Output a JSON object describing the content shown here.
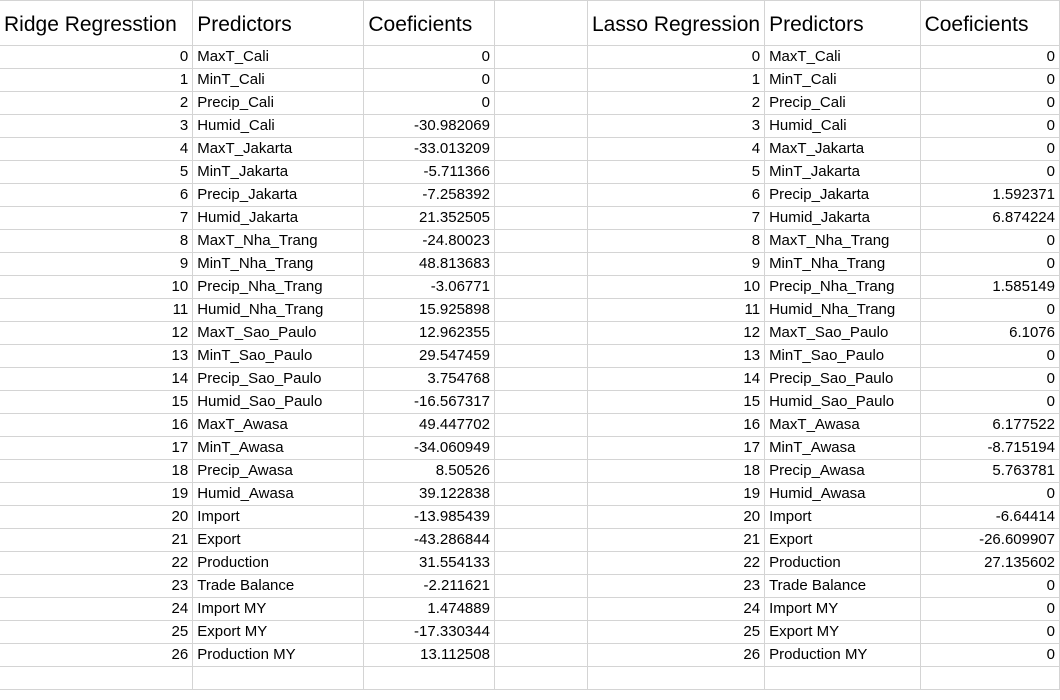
{
  "ridge": {
    "title": "Ridge Regresstion",
    "predictors_header": "Predictors",
    "coef_header": "Coeficients",
    "rows": [
      {
        "idx": "0",
        "name": "MaxT_Cali",
        "coef": "0"
      },
      {
        "idx": "1",
        "name": "MinT_Cali",
        "coef": "0"
      },
      {
        "idx": "2",
        "name": "Precip_Cali",
        "coef": "0"
      },
      {
        "idx": "3",
        "name": "Humid_Cali",
        "coef": "-30.982069"
      },
      {
        "idx": "4",
        "name": "MaxT_Jakarta",
        "coef": "-33.013209"
      },
      {
        "idx": "5",
        "name": "MinT_Jakarta",
        "coef": "-5.711366"
      },
      {
        "idx": "6",
        "name": "Precip_Jakarta",
        "coef": "-7.258392"
      },
      {
        "idx": "7",
        "name": "Humid_Jakarta",
        "coef": "21.352505"
      },
      {
        "idx": "8",
        "name": "MaxT_Nha_Trang",
        "coef": "-24.80023"
      },
      {
        "idx": "9",
        "name": "MinT_Nha_Trang",
        "coef": "48.813683"
      },
      {
        "idx": "10",
        "name": "Precip_Nha_Trang",
        "coef": "-3.06771"
      },
      {
        "idx": "11",
        "name": "Humid_Nha_Trang",
        "coef": "15.925898"
      },
      {
        "idx": "12",
        "name": "MaxT_Sao_Paulo",
        "coef": "12.962355"
      },
      {
        "idx": "13",
        "name": "MinT_Sao_Paulo",
        "coef": "29.547459"
      },
      {
        "idx": "14",
        "name": "Precip_Sao_Paulo",
        "coef": "3.754768"
      },
      {
        "idx": "15",
        "name": "Humid_Sao_Paulo",
        "coef": "-16.567317"
      },
      {
        "idx": "16",
        "name": "MaxT_Awasa",
        "coef": "49.447702"
      },
      {
        "idx": "17",
        "name": "MinT_Awasa",
        "coef": "-34.060949"
      },
      {
        "idx": "18",
        "name": "Precip_Awasa",
        "coef": "8.50526"
      },
      {
        "idx": "19",
        "name": "Humid_Awasa",
        "coef": "39.122838"
      },
      {
        "idx": "20",
        "name": "Import",
        "coef": "-13.985439"
      },
      {
        "idx": "21",
        "name": "Export",
        "coef": "-43.286844"
      },
      {
        "idx": "22",
        "name": "Production",
        "coef": "31.554133"
      },
      {
        "idx": "23",
        "name": "Trade Balance",
        "coef": "-2.211621"
      },
      {
        "idx": "24",
        "name": "Import MY",
        "coef": "1.474889"
      },
      {
        "idx": "25",
        "name": "Export MY",
        "coef": "-17.330344"
      },
      {
        "idx": "26",
        "name": "Production MY",
        "coef": "13.112508"
      }
    ]
  },
  "lasso": {
    "title": "Lasso Regression",
    "predictors_header": "Predictors",
    "coef_header": "Coeficients",
    "rows": [
      {
        "idx": "0",
        "name": "MaxT_Cali",
        "coef": "0"
      },
      {
        "idx": "1",
        "name": "MinT_Cali",
        "coef": "0"
      },
      {
        "idx": "2",
        "name": "Precip_Cali",
        "coef": "0"
      },
      {
        "idx": "3",
        "name": "Humid_Cali",
        "coef": "0"
      },
      {
        "idx": "4",
        "name": "MaxT_Jakarta",
        "coef": "0"
      },
      {
        "idx": "5",
        "name": "MinT_Jakarta",
        "coef": "0"
      },
      {
        "idx": "6",
        "name": "Precip_Jakarta",
        "coef": "1.592371"
      },
      {
        "idx": "7",
        "name": "Humid_Jakarta",
        "coef": "6.874224"
      },
      {
        "idx": "8",
        "name": "MaxT_Nha_Trang",
        "coef": "0"
      },
      {
        "idx": "9",
        "name": "MinT_Nha_Trang",
        "coef": "0"
      },
      {
        "idx": "10",
        "name": "Precip_Nha_Trang",
        "coef": "1.585149"
      },
      {
        "idx": "11",
        "name": "Humid_Nha_Trang",
        "coef": "0"
      },
      {
        "idx": "12",
        "name": "MaxT_Sao_Paulo",
        "coef": "6.1076"
      },
      {
        "idx": "13",
        "name": "MinT_Sao_Paulo",
        "coef": "0"
      },
      {
        "idx": "14",
        "name": "Precip_Sao_Paulo",
        "coef": "0"
      },
      {
        "idx": "15",
        "name": "Humid_Sao_Paulo",
        "coef": "0"
      },
      {
        "idx": "16",
        "name": "MaxT_Awasa",
        "coef": "6.177522"
      },
      {
        "idx": "17",
        "name": "MinT_Awasa",
        "coef": "-8.715194"
      },
      {
        "idx": "18",
        "name": "Precip_Awasa",
        "coef": "5.763781"
      },
      {
        "idx": "19",
        "name": "Humid_Awasa",
        "coef": "0"
      },
      {
        "idx": "20",
        "name": "Import",
        "coef": "-6.64414"
      },
      {
        "idx": "21",
        "name": "Export",
        "coef": "-26.609907"
      },
      {
        "idx": "22",
        "name": "Production",
        "coef": "27.135602"
      },
      {
        "idx": "23",
        "name": "Trade Balance",
        "coef": "0"
      },
      {
        "idx": "24",
        "name": "Import MY",
        "coef": "0"
      },
      {
        "idx": "25",
        "name": "Export MY",
        "coef": "0"
      },
      {
        "idx": "26",
        "name": "Production MY",
        "coef": "0"
      }
    ]
  }
}
